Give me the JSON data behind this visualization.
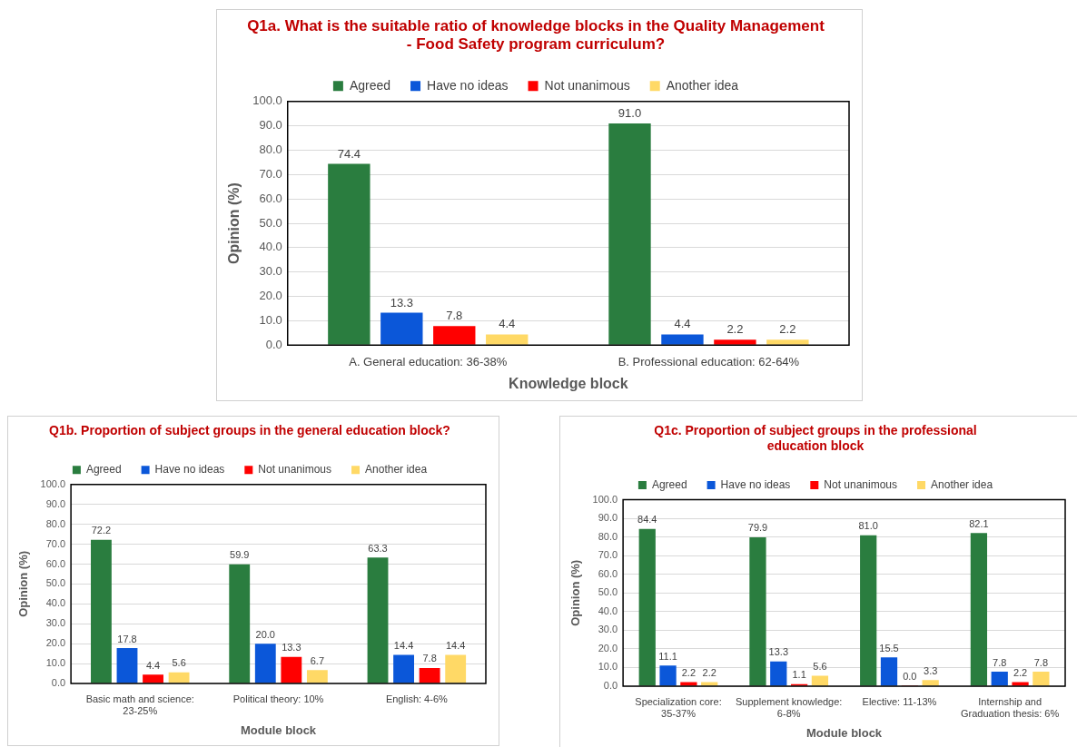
{
  "chart_data": [
    {
      "type": "bar",
      "title": "Q1a. What is the suitable ratio of knowledge blocks in the Quality Management - Food Safety program curriculum?",
      "xlabel": "Knowledge block",
      "ylabel": "Opinion (%)",
      "categories": [
        "A. General education: 36-38%",
        "B. Professional education: 62-64%"
      ],
      "series": [
        {
          "name": "Agreed",
          "color": "#2a7d3f",
          "values": [
            74.4,
            91.0
          ],
          "value_labels": [
            "74.4",
            "91.0"
          ]
        },
        {
          "name": "Have no ideas",
          "color": "#0b57d9",
          "values": [
            13.3,
            4.4
          ],
          "value_labels": [
            "13.3",
            "4.4"
          ]
        },
        {
          "name": "Not unanimous",
          "color": "#ff0000",
          "values": [
            7.8,
            2.2
          ],
          "value_labels": [
            "7.8",
            "2.2"
          ]
        },
        {
          "name": "Another idea",
          "color": "#ffd966",
          "values": [
            4.4,
            2.2
          ],
          "value_labels": [
            "4.4",
            "2.2"
          ]
        }
      ],
      "ylim": [
        0,
        100
      ],
      "yticks": [
        {
          "value": 0,
          "label": "0.0"
        },
        {
          "value": 10,
          "label": "10.0"
        },
        {
          "value": 20,
          "label": "20.0"
        },
        {
          "value": 30,
          "label": "30.0"
        },
        {
          "value": 40,
          "label": "40.0"
        },
        {
          "value": 50,
          "label": "50.0"
        },
        {
          "value": 60,
          "label": "60.0"
        },
        {
          "value": 70,
          "label": "70.0"
        },
        {
          "value": 80,
          "label": "80.0"
        },
        {
          "value": 90,
          "label": "90.0"
        },
        {
          "value": 100,
          "label": "100.0"
        }
      ],
      "grid": "y",
      "legend": "top"
    },
    {
      "type": "bar",
      "title": "Q1b. Proportion of subject groups in the general education block?",
      "xlabel": "Module block",
      "ylabel": "Opinion (%)",
      "categories": [
        "Basic math and science: 23-25%",
        "Political theory: 10%",
        "English: 4-6%"
      ],
      "series": [
        {
          "name": "Agreed",
          "color": "#2a7d3f",
          "values": [
            72.2,
            59.9,
            63.3
          ],
          "value_labels": [
            "72.2",
            "59.9",
            "63.3"
          ]
        },
        {
          "name": "Have no ideas",
          "color": "#0b57d9",
          "values": [
            17.8,
            20.0,
            14.4
          ],
          "value_labels": [
            "17.8",
            "20.0",
            "14.4"
          ]
        },
        {
          "name": "Not unanimous",
          "color": "#ff0000",
          "values": [
            4.4,
            13.3,
            7.8
          ],
          "value_labels": [
            "4.4",
            "13.3",
            "7.8"
          ]
        },
        {
          "name": "Another idea",
          "color": "#ffd966",
          "values": [
            5.6,
            6.7,
            14.4
          ],
          "value_labels": [
            "5.6",
            "6.7",
            "14.4"
          ]
        }
      ],
      "ylim": [
        0,
        100
      ],
      "yticks": [
        {
          "value": 0,
          "label": "0.0"
        },
        {
          "value": 10,
          "label": "10.0"
        },
        {
          "value": 20,
          "label": "20.0"
        },
        {
          "value": 30,
          "label": "30.0"
        },
        {
          "value": 40,
          "label": "40.0"
        },
        {
          "value": 50,
          "label": "50.0"
        },
        {
          "value": 60,
          "label": "60.0"
        },
        {
          "value": 70,
          "label": "70.0"
        },
        {
          "value": 80,
          "label": "80.0"
        },
        {
          "value": 90,
          "label": "90.0"
        },
        {
          "value": 100,
          "label": "100.0"
        }
      ],
      "grid": "y",
      "legend": "top"
    },
    {
      "type": "bar",
      "title": "Q1c. Proportion of subject groups in the professional education block",
      "xlabel": "Module block",
      "ylabel": "Opinion (%)",
      "categories": [
        "Specialization core: 35-37%",
        "Supplement knowledge: 6-8%",
        "Elective: 11-13%",
        "Internship and Graduation thesis: 6%"
      ],
      "series": [
        {
          "name": "Agreed",
          "color": "#2a7d3f",
          "values": [
            84.4,
            79.9,
            81.0,
            82.1
          ],
          "value_labels": [
            "84.4",
            "79.9",
            "81.0",
            "82.1"
          ]
        },
        {
          "name": "Have no ideas",
          "color": "#0b57d9",
          "values": [
            11.1,
            13.3,
            15.5,
            7.8
          ],
          "value_labels": [
            "11.1",
            "13.3",
            "15.5",
            "7.8"
          ]
        },
        {
          "name": "Not unanimous",
          "color": "#ff0000",
          "values": [
            2.2,
            1.1,
            0.0,
            2.2
          ],
          "value_labels": [
            "2.2",
            "1.1",
            "0.0",
            "2.2"
          ]
        },
        {
          "name": "Another idea",
          "color": "#ffd966",
          "values": [
            2.2,
            5.6,
            3.3,
            7.8
          ],
          "value_labels": [
            "2.2",
            "5.6",
            "3.3",
            "7.8"
          ]
        }
      ],
      "ylim": [
        0,
        100
      ],
      "yticks": [
        {
          "value": 0,
          "label": "0.0"
        },
        {
          "value": 10,
          "label": "10.0"
        },
        {
          "value": 20,
          "label": "20.0"
        },
        {
          "value": 30,
          "label": "30.0"
        },
        {
          "value": 40,
          "label": "40.0"
        },
        {
          "value": 50,
          "label": "50.0"
        },
        {
          "value": 60,
          "label": "60.0"
        },
        {
          "value": 70,
          "label": "70.0"
        },
        {
          "value": 80,
          "label": "80.0"
        },
        {
          "value": 90,
          "label": "90.0"
        },
        {
          "value": 100,
          "label": "100.0"
        }
      ],
      "grid": "y",
      "legend": "top"
    }
  ]
}
